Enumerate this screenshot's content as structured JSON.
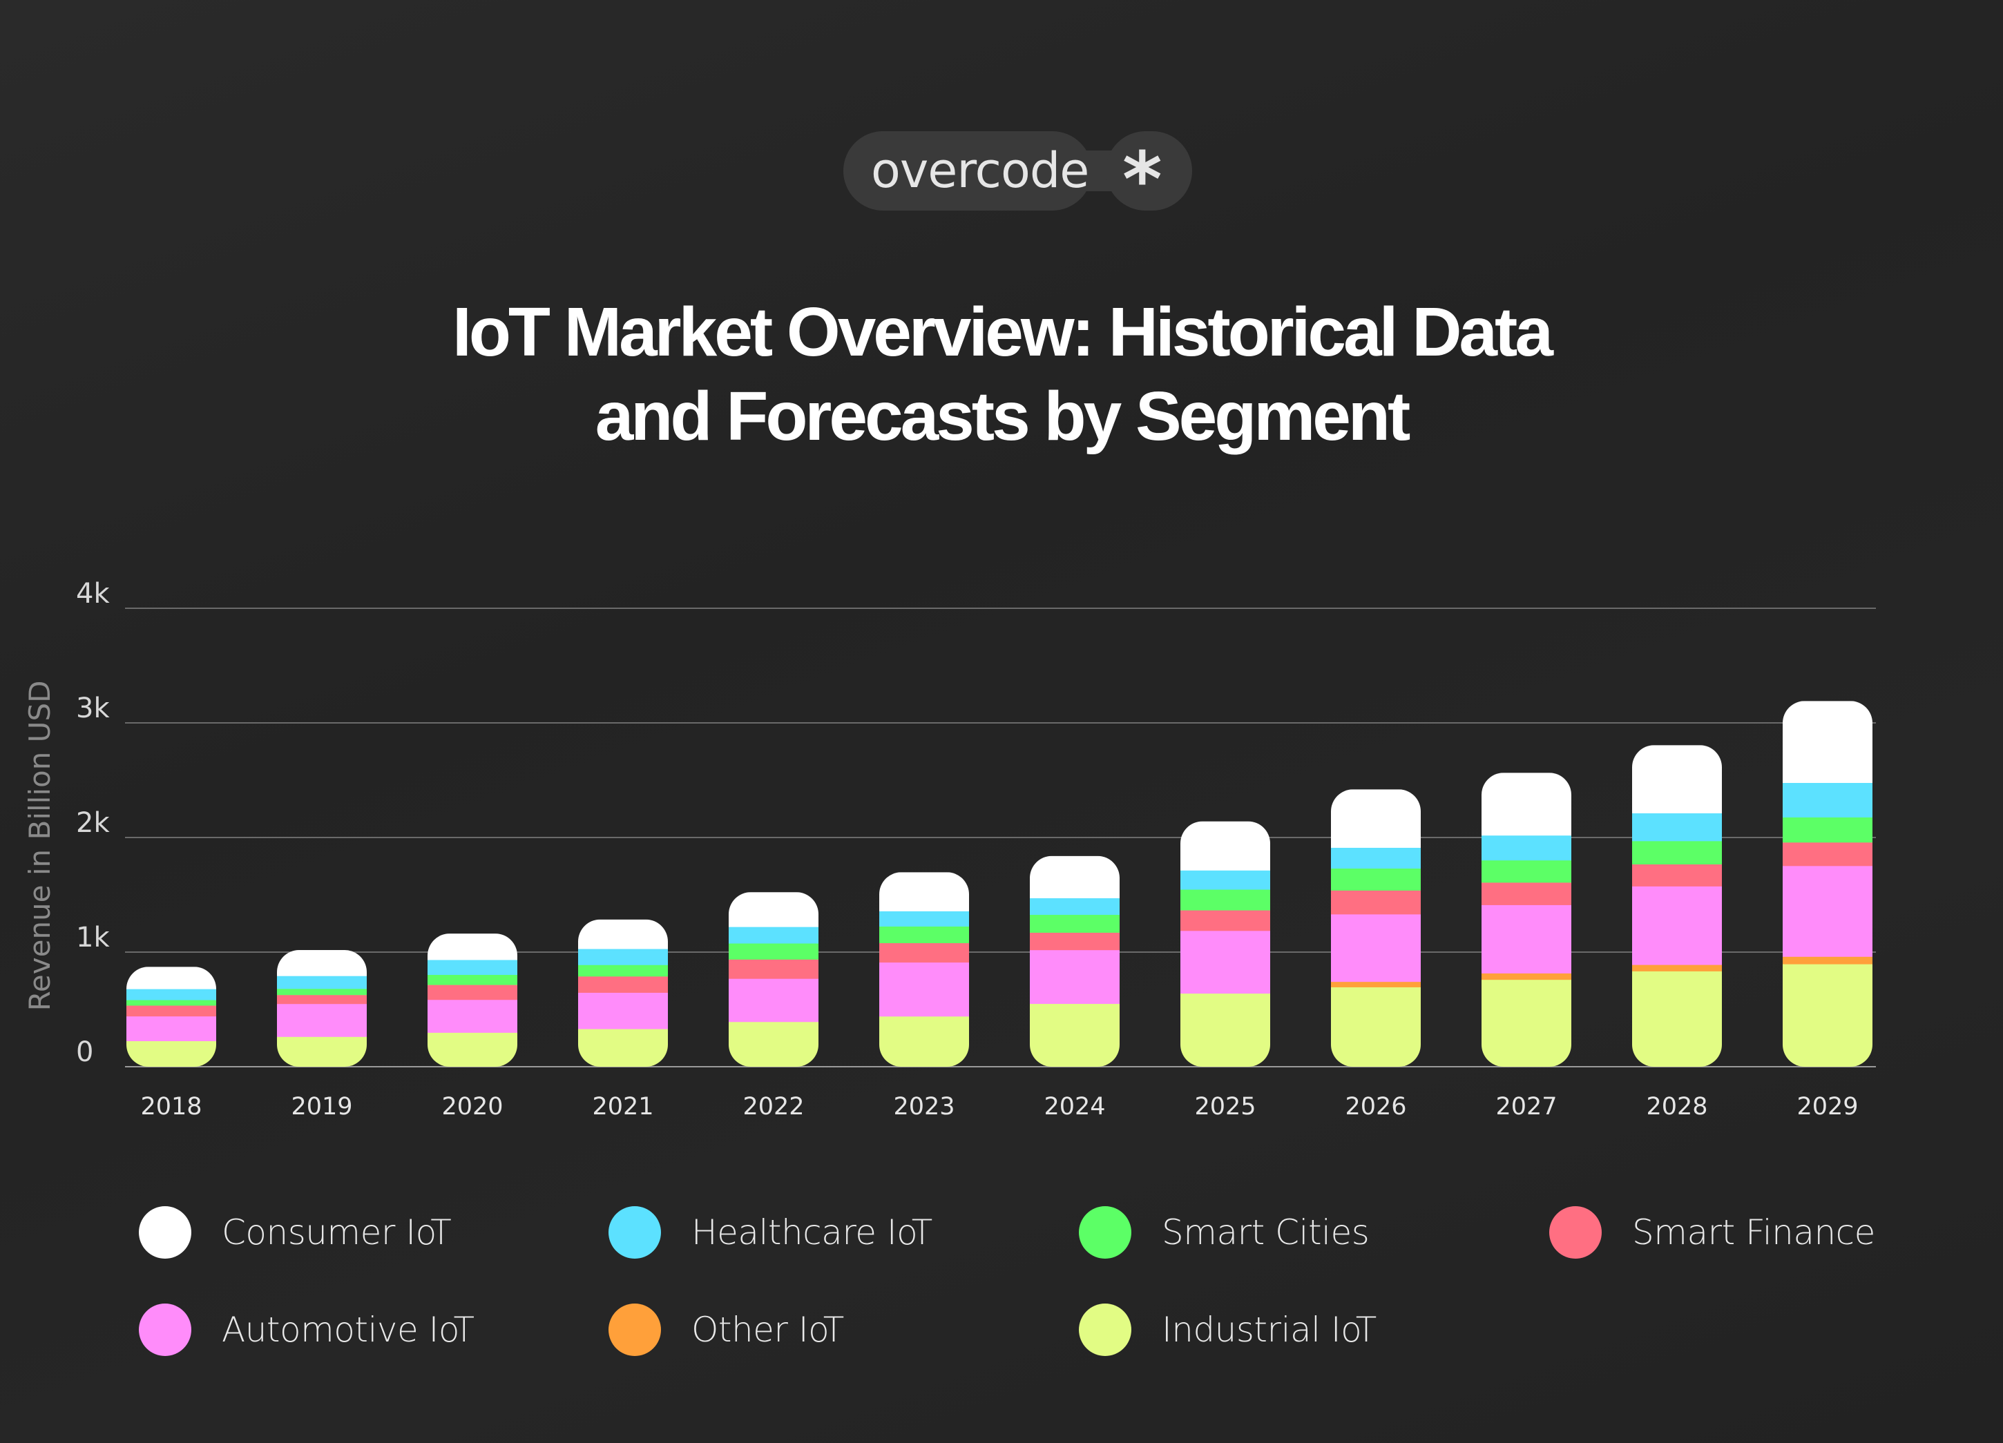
{
  "brand": {
    "name": "overcode",
    "symbol": "*"
  },
  "chart_data": {
    "type": "bar",
    "stacked": true,
    "title": "IoT Market Overview: Historical Data and Forecasts by Segment",
    "title_lines": [
      "IoT Market Overview: Historical Data",
      "and Forecasts by Segment"
    ],
    "xlabel": "",
    "ylabel": "Revenue in Billion USD",
    "ylim": [
      0,
      4000
    ],
    "yticks": [
      0,
      1000,
      2000,
      3000,
      4000
    ],
    "ytick_labels": [
      "0",
      "1k",
      "2k",
      "3k",
      "4k"
    ],
    "grid": true,
    "legend_position": "bottom",
    "categories": [
      "2018",
      "2019",
      "2020",
      "2021",
      "2022",
      "2023",
      "2024",
      "2025",
      "2026",
      "2027",
      "2028",
      "2029"
    ],
    "series": [
      {
        "name": "Industrial IoT",
        "color": "#e2fc84",
        "values": [
          226,
          263,
          299,
          331,
          393,
          441,
          551,
          641,
          696,
          761,
          835,
          897
        ]
      },
      {
        "name": "Other IoT",
        "color": "#ffa03a",
        "values": [
          0,
          0,
          0,
          0,
          0,
          0,
          0,
          0,
          47,
          56,
          56,
          65
        ]
      },
      {
        "name": "Automotive IoT",
        "color": "#ff8cfa",
        "values": [
          216,
          287,
          287,
          317,
          377,
          471,
          469,
          547,
          589,
          596,
          685,
          792
        ]
      },
      {
        "name": "Smart Finance",
        "color": "#ff6f82",
        "values": [
          94,
          78,
          130,
          142,
          168,
          169,
          152,
          179,
          208,
          196,
          192,
          205
        ]
      },
      {
        "name": "Smart Cities",
        "color": "#5cff66",
        "values": [
          48,
          54,
          88,
          100,
          140,
          145,
          156,
          181,
          192,
          194,
          203,
          219
        ]
      },
      {
        "name": "Healthcare IoT",
        "color": "#5ce1ff",
        "values": [
          96,
          112,
          130,
          140,
          144,
          133,
          145,
          167,
          181,
          217,
          243,
          301
        ]
      },
      {
        "name": "Consumer IoT",
        "color": "#ffffff",
        "values": [
          192,
          224,
          228,
          255,
          301,
          338,
          366,
          426,
          507,
          545,
          592,
          712
        ]
      }
    ],
    "legend_order": [
      "Consumer IoT",
      "Healthcare IoT",
      "Smart Cities",
      "Smart Finance",
      "Automotive IoT",
      "Other IoT",
      "Industrial IoT"
    ]
  }
}
